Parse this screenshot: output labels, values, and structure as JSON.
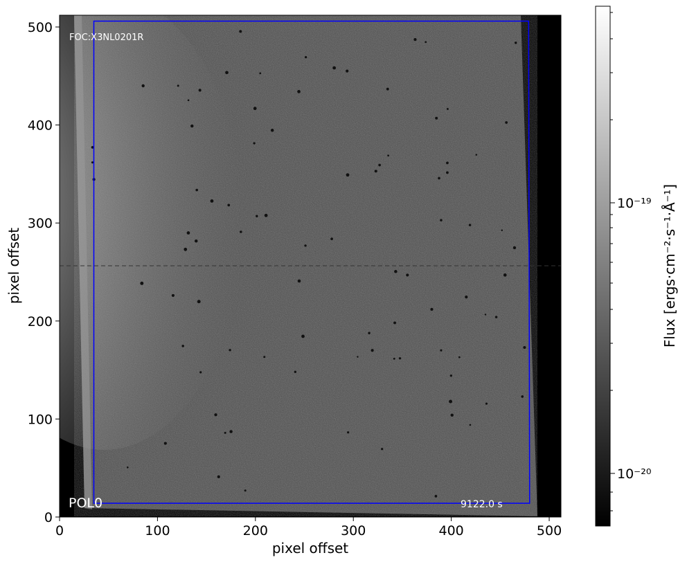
{
  "chart_data": {
    "type": "heatmap",
    "xlabel": "pixel offset",
    "ylabel": "pixel offset",
    "xlim": [
      0,
      512
    ],
    "ylim": [
      0,
      512
    ],
    "x_ticks": [
      0,
      100,
      200,
      300,
      400,
      500
    ],
    "y_ticks": [
      0,
      100,
      200,
      300,
      400,
      500
    ],
    "x_tick_labels": [
      "0",
      "100",
      "200",
      "300",
      "400",
      "500"
    ],
    "y_tick_labels": [
      "0",
      "100",
      "200",
      "300",
      "400",
      "500"
    ],
    "annotations": {
      "top_left": "FOC:X3NL0201R",
      "bottom_left": "POL0",
      "bottom_right": "9122.0 s"
    },
    "colorbar": {
      "label": "Flux [ergs·cm⁻²·s⁻¹·Å⁻¹]",
      "scale": "log",
      "colormap": "gray",
      "major_tick_labels": [
        "10⁻¹⁹",
        "10⁻²⁰"
      ],
      "min_value": 7e-21,
      "max_value": 7e-19
    },
    "crop_box": {
      "corners": [
        [
          35,
          14
        ],
        [
          480,
          14
        ],
        [
          479,
          506
        ],
        [
          35,
          506
        ]
      ],
      "color": "#0000ff"
    },
    "colors": {
      "background": "#000000",
      "image_mid": "#555555",
      "bright_region": "#d4d4d4",
      "box": "#0000ff"
    }
  }
}
